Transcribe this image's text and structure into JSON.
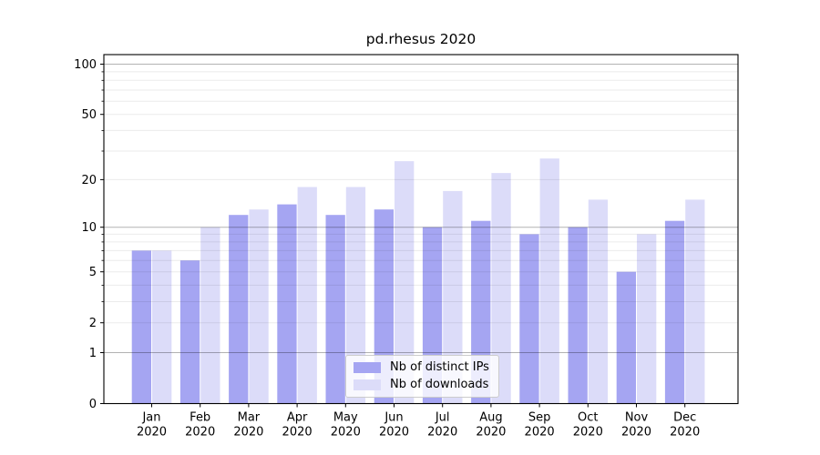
{
  "chart_data": {
    "type": "bar",
    "title": "pd.rhesus 2020",
    "categories": [
      "Jan",
      "Feb",
      "Mar",
      "Apr",
      "May",
      "Jun",
      "Jul",
      "Aug",
      "Sep",
      "Oct",
      "Nov",
      "Dec"
    ],
    "year_label": "2020",
    "series": [
      {
        "name": "Nb of distinct IPs",
        "color": "#a5a5f2",
        "values": [
          7,
          6,
          12,
          14,
          12,
          13,
          10,
          11,
          9,
          10,
          5,
          11
        ]
      },
      {
        "name": "Nb of downloads",
        "color": "#dcdcf9",
        "values": [
          7,
          10,
          13,
          18,
          18,
          26,
          17,
          22,
          27,
          15,
          9,
          15
        ]
      }
    ],
    "yscale": "log1p",
    "ylim": [
      0,
      114
    ],
    "y_tick_labels": [
      100,
      50,
      20,
      10,
      5,
      2,
      1,
      0
    ],
    "y_major_gridlines": [
      1,
      10,
      100
    ],
    "y_minor_gridlines": [
      2,
      3,
      4,
      5,
      6,
      7,
      8,
      9,
      20,
      30,
      40,
      50,
      60,
      70,
      80,
      90
    ],
    "grid": true,
    "legend_position": "lower center",
    "colors": {
      "grid_major": "rgba(0,0,0,0.30)",
      "grid_minor": "rgba(0,0,0,0.08)",
      "axis": "#000000",
      "text": "#000000"
    }
  }
}
